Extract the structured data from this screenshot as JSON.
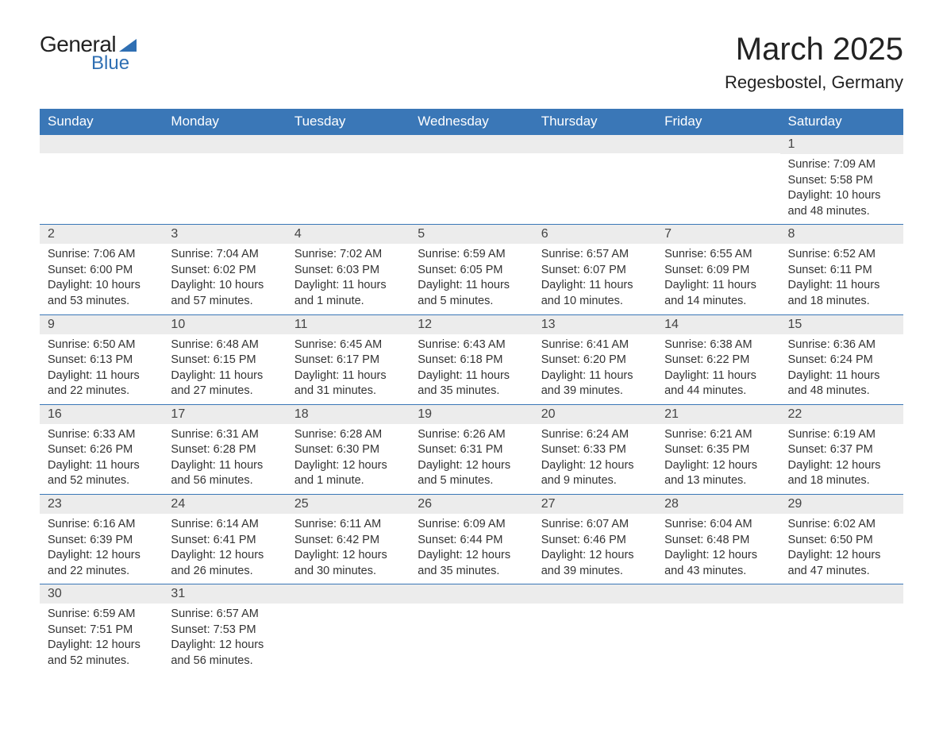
{
  "brand": {
    "part1": "General",
    "part2": "Blue"
  },
  "title": "March 2025",
  "location": "Regesbostel, Germany",
  "colors": {
    "header_bg": "#3a77b7",
    "header_text": "#ffffff",
    "daybar_bg": "#ececec",
    "row_border": "#3a77b7",
    "body_text": "#333333",
    "logo_blue": "#2f6fb3"
  },
  "layout": {
    "columns": 7,
    "font_family": "Arial",
    "title_fontsize": 40,
    "location_fontsize": 22,
    "header_fontsize": 17,
    "daynum_fontsize": 16,
    "body_fontsize": 14.5
  },
  "weekdays": [
    "Sunday",
    "Monday",
    "Tuesday",
    "Wednesday",
    "Thursday",
    "Friday",
    "Saturday"
  ],
  "weeks": [
    [
      null,
      null,
      null,
      null,
      null,
      null,
      {
        "n": "1",
        "sr": "Sunrise: 7:09 AM",
        "ss": "Sunset: 5:58 PM",
        "d1": "Daylight: 10 hours",
        "d2": "and 48 minutes."
      }
    ],
    [
      {
        "n": "2",
        "sr": "Sunrise: 7:06 AM",
        "ss": "Sunset: 6:00 PM",
        "d1": "Daylight: 10 hours",
        "d2": "and 53 minutes."
      },
      {
        "n": "3",
        "sr": "Sunrise: 7:04 AM",
        "ss": "Sunset: 6:02 PM",
        "d1": "Daylight: 10 hours",
        "d2": "and 57 minutes."
      },
      {
        "n": "4",
        "sr": "Sunrise: 7:02 AM",
        "ss": "Sunset: 6:03 PM",
        "d1": "Daylight: 11 hours",
        "d2": "and 1 minute."
      },
      {
        "n": "5",
        "sr": "Sunrise: 6:59 AM",
        "ss": "Sunset: 6:05 PM",
        "d1": "Daylight: 11 hours",
        "d2": "and 5 minutes."
      },
      {
        "n": "6",
        "sr": "Sunrise: 6:57 AM",
        "ss": "Sunset: 6:07 PM",
        "d1": "Daylight: 11 hours",
        "d2": "and 10 minutes."
      },
      {
        "n": "7",
        "sr": "Sunrise: 6:55 AM",
        "ss": "Sunset: 6:09 PM",
        "d1": "Daylight: 11 hours",
        "d2": "and 14 minutes."
      },
      {
        "n": "8",
        "sr": "Sunrise: 6:52 AM",
        "ss": "Sunset: 6:11 PM",
        "d1": "Daylight: 11 hours",
        "d2": "and 18 minutes."
      }
    ],
    [
      {
        "n": "9",
        "sr": "Sunrise: 6:50 AM",
        "ss": "Sunset: 6:13 PM",
        "d1": "Daylight: 11 hours",
        "d2": "and 22 minutes."
      },
      {
        "n": "10",
        "sr": "Sunrise: 6:48 AM",
        "ss": "Sunset: 6:15 PM",
        "d1": "Daylight: 11 hours",
        "d2": "and 27 minutes."
      },
      {
        "n": "11",
        "sr": "Sunrise: 6:45 AM",
        "ss": "Sunset: 6:17 PM",
        "d1": "Daylight: 11 hours",
        "d2": "and 31 minutes."
      },
      {
        "n": "12",
        "sr": "Sunrise: 6:43 AM",
        "ss": "Sunset: 6:18 PM",
        "d1": "Daylight: 11 hours",
        "d2": "and 35 minutes."
      },
      {
        "n": "13",
        "sr": "Sunrise: 6:41 AM",
        "ss": "Sunset: 6:20 PM",
        "d1": "Daylight: 11 hours",
        "d2": "and 39 minutes."
      },
      {
        "n": "14",
        "sr": "Sunrise: 6:38 AM",
        "ss": "Sunset: 6:22 PM",
        "d1": "Daylight: 11 hours",
        "d2": "and 44 minutes."
      },
      {
        "n": "15",
        "sr": "Sunrise: 6:36 AM",
        "ss": "Sunset: 6:24 PM",
        "d1": "Daylight: 11 hours",
        "d2": "and 48 minutes."
      }
    ],
    [
      {
        "n": "16",
        "sr": "Sunrise: 6:33 AM",
        "ss": "Sunset: 6:26 PM",
        "d1": "Daylight: 11 hours",
        "d2": "and 52 minutes."
      },
      {
        "n": "17",
        "sr": "Sunrise: 6:31 AM",
        "ss": "Sunset: 6:28 PM",
        "d1": "Daylight: 11 hours",
        "d2": "and 56 minutes."
      },
      {
        "n": "18",
        "sr": "Sunrise: 6:28 AM",
        "ss": "Sunset: 6:30 PM",
        "d1": "Daylight: 12 hours",
        "d2": "and 1 minute."
      },
      {
        "n": "19",
        "sr": "Sunrise: 6:26 AM",
        "ss": "Sunset: 6:31 PM",
        "d1": "Daylight: 12 hours",
        "d2": "and 5 minutes."
      },
      {
        "n": "20",
        "sr": "Sunrise: 6:24 AM",
        "ss": "Sunset: 6:33 PM",
        "d1": "Daylight: 12 hours",
        "d2": "and 9 minutes."
      },
      {
        "n": "21",
        "sr": "Sunrise: 6:21 AM",
        "ss": "Sunset: 6:35 PM",
        "d1": "Daylight: 12 hours",
        "d2": "and 13 minutes."
      },
      {
        "n": "22",
        "sr": "Sunrise: 6:19 AM",
        "ss": "Sunset: 6:37 PM",
        "d1": "Daylight: 12 hours",
        "d2": "and 18 minutes."
      }
    ],
    [
      {
        "n": "23",
        "sr": "Sunrise: 6:16 AM",
        "ss": "Sunset: 6:39 PM",
        "d1": "Daylight: 12 hours",
        "d2": "and 22 minutes."
      },
      {
        "n": "24",
        "sr": "Sunrise: 6:14 AM",
        "ss": "Sunset: 6:41 PM",
        "d1": "Daylight: 12 hours",
        "d2": "and 26 minutes."
      },
      {
        "n": "25",
        "sr": "Sunrise: 6:11 AM",
        "ss": "Sunset: 6:42 PM",
        "d1": "Daylight: 12 hours",
        "d2": "and 30 minutes."
      },
      {
        "n": "26",
        "sr": "Sunrise: 6:09 AM",
        "ss": "Sunset: 6:44 PM",
        "d1": "Daylight: 12 hours",
        "d2": "and 35 minutes."
      },
      {
        "n": "27",
        "sr": "Sunrise: 6:07 AM",
        "ss": "Sunset: 6:46 PM",
        "d1": "Daylight: 12 hours",
        "d2": "and 39 minutes."
      },
      {
        "n": "28",
        "sr": "Sunrise: 6:04 AM",
        "ss": "Sunset: 6:48 PM",
        "d1": "Daylight: 12 hours",
        "d2": "and 43 minutes."
      },
      {
        "n": "29",
        "sr": "Sunrise: 6:02 AM",
        "ss": "Sunset: 6:50 PM",
        "d1": "Daylight: 12 hours",
        "d2": "and 47 minutes."
      }
    ],
    [
      {
        "n": "30",
        "sr": "Sunrise: 6:59 AM",
        "ss": "Sunset: 7:51 PM",
        "d1": "Daylight: 12 hours",
        "d2": "and 52 minutes."
      },
      {
        "n": "31",
        "sr": "Sunrise: 6:57 AM",
        "ss": "Sunset: 7:53 PM",
        "d1": "Daylight: 12 hours",
        "d2": "and 56 minutes."
      },
      null,
      null,
      null,
      null,
      null
    ]
  ]
}
